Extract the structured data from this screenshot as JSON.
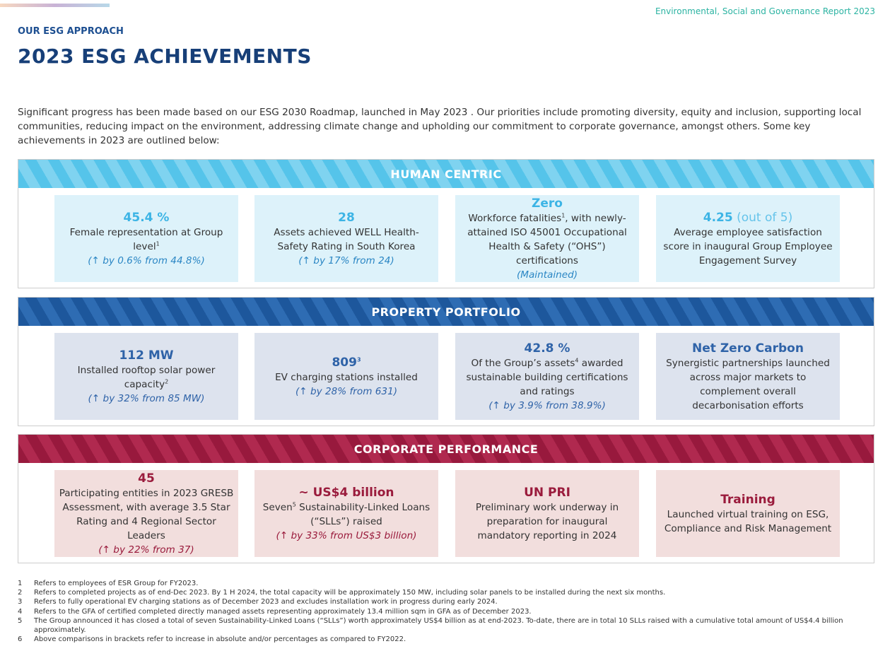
{
  "header": {
    "report": "Environmental, Social and Governance Report 2023",
    "section": "OUR ESG APPROACH",
    "title": "2023 ESG ACHIEVEMENTS"
  },
  "intro": "Significant progress has been made based on our ESG 2030 Roadmap, launched in May 2023 . Our priorities include promoting diversity, equity and inclusion, supporting local communities, reducing impact on the environment, addressing climate change and upholding our commitment to corporate governance, amongst others. Some key achievements in 2023 are outlined below:",
  "panels": [
    {
      "title": "HUMAN CENTRIC",
      "cards": [
        {
          "headline": [
            {
              "t": "45.4 %"
            }
          ],
          "body": [
            {
              "t": "Female representation at Group level"
            },
            {
              "sup": "1"
            }
          ],
          "change": "(↑ by 0.6% from 44.8%)"
        },
        {
          "headline": [
            {
              "t": "28"
            }
          ],
          "body": [
            {
              "t": "Assets achieved WELL Health-Safety Rating in South Korea"
            }
          ],
          "change": "(↑ by 17% from 24)"
        },
        {
          "headline": [
            {
              "t": "Zero"
            }
          ],
          "body": [
            {
              "t": "Workforce fatalities"
            },
            {
              "sup": "1"
            },
            {
              "t": ", with newly-attained ISO 45001 Occupational Health & Safety (“OHS”) certifications"
            }
          ],
          "change": "(Maintained)"
        },
        {
          "headline": [
            {
              "t": "4.25"
            },
            {
              "light": " (out of 5)"
            }
          ],
          "body": [
            {
              "t": "Average employee satisfaction score in inaugural Group Employee Engagement Survey"
            }
          ]
        }
      ]
    },
    {
      "title": "PROPERTY PORTFOLIO",
      "cards": [
        {
          "headline": [
            {
              "t": "112 MW"
            }
          ],
          "body": [
            {
              "t": "Installed rooftop solar power capacity"
            },
            {
              "sup": "2"
            }
          ],
          "change": "(↑ by 32% from 85 MW)"
        },
        {
          "headline": [
            {
              "t": "809"
            },
            {
              "sup": "3"
            }
          ],
          "body": [
            {
              "t": "EV charging stations installed"
            }
          ],
          "change": "(↑ by 28% from 631)"
        },
        {
          "headline": [
            {
              "t": "42.8 %"
            }
          ],
          "body": [
            {
              "t": "Of the Group’s assets"
            },
            {
              "sup": "4"
            },
            {
              "t": " awarded sustainable building certifications and ratings"
            }
          ],
          "change": "(↑ by 3.9% from 38.9%)"
        },
        {
          "headline": [
            {
              "t": "Net Zero Carbon"
            }
          ],
          "body": [
            {
              "t": "Synergistic partnerships launched across major markets to complement overall decarbonisation efforts"
            }
          ]
        }
      ]
    },
    {
      "title": "CORPORATE PERFORMANCE",
      "cards": [
        {
          "headline": [
            {
              "t": "45"
            }
          ],
          "body": [
            {
              "t": "Participating entities in 2023 GRESB Assessment, with average 3.5 Star Rating and 4 Regional Sector Leaders"
            }
          ],
          "change": "(↑ by 22% from 37)"
        },
        {
          "headline": [
            {
              "t": "~ US$4 billion"
            }
          ],
          "body": [
            {
              "t": "Seven"
            },
            {
              "sup": "5"
            },
            {
              "t": " Sustainability-Linked Loans (“SLLs”) raised"
            }
          ],
          "change": "(↑ by 33% from US$3 billion)"
        },
        {
          "headline": [
            {
              "t": "UN PRI"
            }
          ],
          "body": [
            {
              "t": "Preliminary work underway in preparation for inaugural mandatory reporting in 2024"
            }
          ]
        },
        {
          "headline": [
            {
              "t": "Training"
            }
          ],
          "body": [
            {
              "t": "Launched virtual training on ESG, Compliance and Risk Management"
            }
          ]
        }
      ]
    }
  ],
  "footnotes": [
    {
      "n": "1",
      "t": "Refers to employees of ESR Group for FY2023."
    },
    {
      "n": "2",
      "t": "Refers to completed projects as of end-Dec 2023. By 1 H 2024, the total capacity will be approximately 150 MW, including solar panels to be installed during the next six months."
    },
    {
      "n": "3",
      "t": "Refers to fully operational EV charging stations as of December 2023 and excludes installation work in progress during early 2024."
    },
    {
      "n": "4",
      "t": "Refers to the GFA of certified completed directly managed assets representing approximately 13.4 million sqm in GFA as of December 2023."
    },
    {
      "n": "5",
      "t": "The Group announced it has closed a total of seven Sustainability-Linked Loans (“SLLs”) worth approximately US$4 billion as at end-2023. To-date, there are in total 10 SLLs raised with a cumulative total amount of US$4.4 billion approximately."
    },
    {
      "n": "6",
      "t": "Above comparisons in brackets refer to increase in absolute and/or percentages as compared to FY2022."
    }
  ]
}
